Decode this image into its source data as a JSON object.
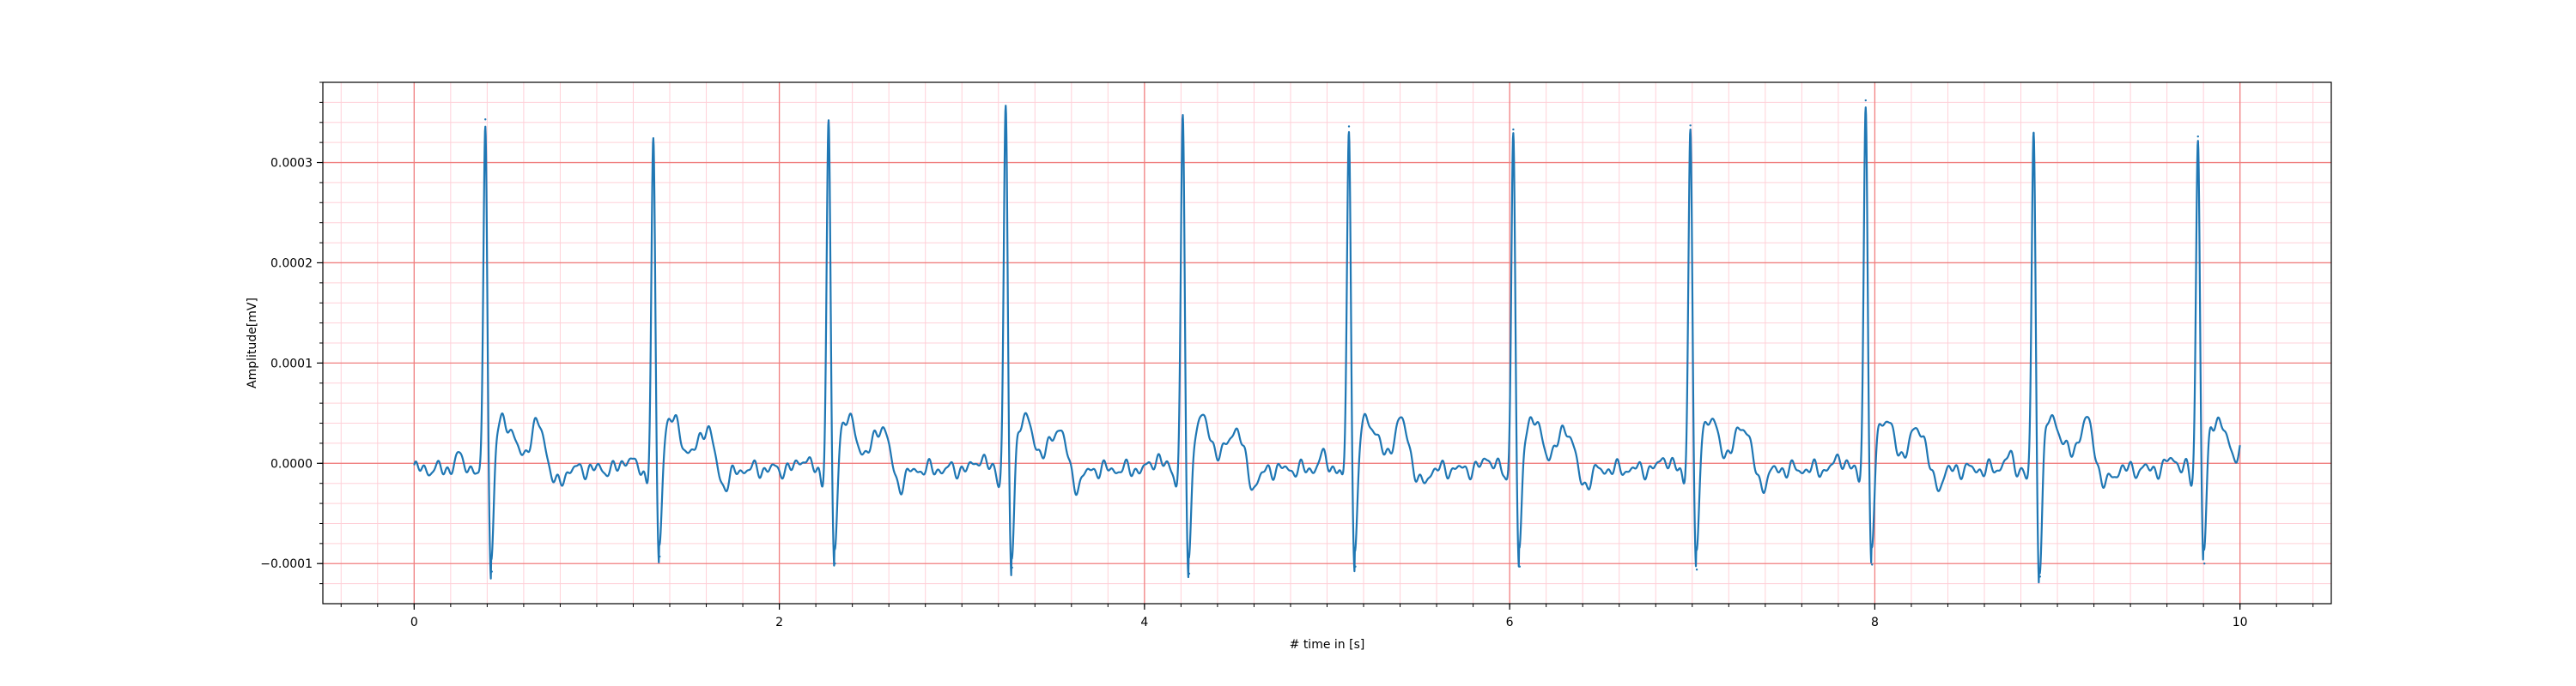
{
  "chart_data": {
    "type": "line",
    "xlabel": "# time in [s]",
    "ylabel": "Amplitude[mV]",
    "xlim": [
      -0.5,
      10.5
    ],
    "ylim": [
      -0.00014,
      0.00038
    ],
    "x_ticks": [
      {
        "value": 0,
        "label": "0"
      },
      {
        "value": 2,
        "label": "2"
      },
      {
        "value": 4,
        "label": "4"
      },
      {
        "value": 6,
        "label": "6"
      },
      {
        "value": 8,
        "label": "8"
      },
      {
        "value": 10,
        "label": "10"
      }
    ],
    "y_ticks": [
      {
        "value": -0.0001,
        "label": "−0.0001"
      },
      {
        "value": 0.0,
        "label": "0.0000"
      },
      {
        "value": 0.0001,
        "label": "0.0001"
      },
      {
        "value": 0.0002,
        "label": "0.0002"
      },
      {
        "value": 0.0003,
        "label": "0.0003"
      }
    ],
    "grid": {
      "major": true,
      "minor": true,
      "major_color": "#f08080",
      "minor_color": "#ffd0d8"
    },
    "line_color": "#1f77b4",
    "beats": [
      {
        "r_time": 0.39,
        "r_peak": 0.000343,
        "s_min": -0.000108,
        "t_peak": 3.5e-05
      },
      {
        "r_time": 1.31,
        "r_peak": 0.000318,
        "s_min": -9.3e-05,
        "t_peak": 3.2e-05
      },
      {
        "r_time": 2.27,
        "r_peak": 0.000339,
        "s_min": -0.0001,
        "t_peak": 3.4e-05
      },
      {
        "r_time": 3.24,
        "r_peak": 0.000353,
        "s_min": -0.000104,
        "t_peak": 3.2e-05
      },
      {
        "r_time": 4.21,
        "r_peak": 0.000343,
        "s_min": -0.00011,
        "t_peak": 3.1e-05
      },
      {
        "r_time": 5.12,
        "r_peak": 0.000336,
        "s_min": -0.000103,
        "t_peak": 3.8e-05
      },
      {
        "r_time": 6.02,
        "r_peak": 0.000333,
        "s_min": -0.000103,
        "t_peak": 3.2e-05
      },
      {
        "r_time": 6.99,
        "r_peak": 0.000337,
        "s_min": -0.000106,
        "t_peak": 3.5e-05
      },
      {
        "r_time": 7.95,
        "r_peak": 0.000362,
        "s_min": -0.000101,
        "t_peak": 3.3e-05
      },
      {
        "r_time": 8.87,
        "r_peak": 0.000329,
        "s_min": -0.000113,
        "t_peak": 3.8e-05
      },
      {
        "r_time": 9.77,
        "r_peak": 0.000326,
        "s_min": -0.0001,
        "t_peak": 3.1e-05
      }
    ],
    "t_start": 0,
    "t_end": 10
  }
}
